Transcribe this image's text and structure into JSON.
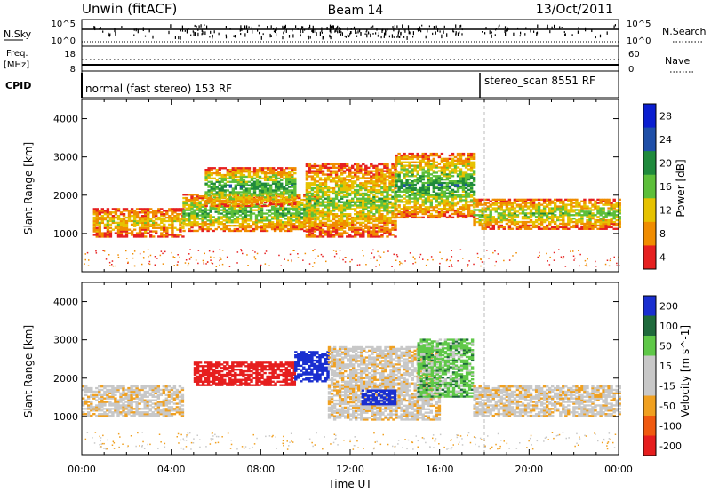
{
  "header": {
    "station": "Unwin (fitACF)",
    "beam": "Beam 14",
    "date": "13/Oct/2011"
  },
  "strip_labels": {
    "nsky": "N.Sky",
    "nsearch": "N.Search",
    "freq": "Freq.",
    "freq_unit": "[MHz]",
    "nave": "Nave",
    "cpid": "CPID",
    "nsky_ticks": [
      "10^5",
      "10^0"
    ],
    "nsearch_ticks": [
      "10^5",
      "10^0"
    ],
    "freq_ticks": [
      "18",
      "8"
    ],
    "nave_ticks": [
      "60",
      "0"
    ]
  },
  "cpid_modes": [
    {
      "label": "normal (fast stereo) 153 RF",
      "start_hour": 0
    },
    {
      "label": "stereo_scan 8551 RF",
      "start_hour": 18
    }
  ],
  "chart_data": [
    {
      "type": "heatmap",
      "name": "power",
      "ylabel": "Slant Range [km]",
      "xlabel": "Time UT",
      "xlim": [
        0,
        24
      ],
      "ylim": [
        0,
        4500
      ],
      "x_ticks": [
        "00:00",
        "04:00",
        "08:00",
        "12:00",
        "16:00",
        "20:00",
        "00:00"
      ],
      "y_ticks": [
        "1000",
        "2000",
        "3000",
        "4000"
      ],
      "colorbar": {
        "label": "Power [dB]",
        "ticks": [
          "28",
          "24",
          "20",
          "16",
          "12",
          "8",
          "4"
        ],
        "range": [
          0,
          32
        ],
        "colors": [
          "#0a1ed0",
          "#1f4fa8",
          "#1f8a3c",
          "#5dbf3a",
          "#e6c200",
          "#f08c00",
          "#e62020"
        ]
      },
      "echo_bands": [
        {
          "t": [
            0.5,
            4.5
          ],
          "range": [
            900,
            1650
          ],
          "level": 10
        },
        {
          "t": [
            4.5,
            10.5
          ],
          "range": [
            1050,
            2000
          ],
          "level": 16
        },
        {
          "t": [
            5.5,
            9.5
          ],
          "range": [
            1700,
            2700
          ],
          "level": 18
        },
        {
          "t": [
            10,
            14
          ],
          "range": [
            900,
            2800
          ],
          "level": 14
        },
        {
          "t": [
            14,
            17.5
          ],
          "range": [
            1400,
            3100
          ],
          "level": 18
        },
        {
          "t": [
            17.5,
            24
          ],
          "range": [
            1100,
            1900
          ],
          "level": 14
        }
      ]
    },
    {
      "type": "heatmap",
      "name": "velocity",
      "ylabel": "Slant Range [km]",
      "xlabel": "Time UT",
      "xlim": [
        0,
        24
      ],
      "ylim": [
        0,
        4500
      ],
      "x_ticks": [
        "00:00",
        "04:00",
        "08:00",
        "12:00",
        "16:00",
        "20:00",
        "00:00"
      ],
      "y_ticks": [
        "1000",
        "2000",
        "3000",
        "4000"
      ],
      "colorbar": {
        "label": "Velocity [m s^-1]",
        "ticks": [
          "200",
          "100",
          "50",
          "15",
          "-15",
          "-50",
          "-100",
          "-200"
        ],
        "colors": [
          "#1a2fd0",
          "#1f6a3c",
          "#5fc848",
          "#c8c8c8",
          "#c8c8c8",
          "#f0a020",
          "#f05a10",
          "#e61e1e"
        ]
      },
      "echo_bands": [
        {
          "t": [
            0,
            4.5
          ],
          "range": [
            1000,
            1800
          ],
          "velocity": 0
        },
        {
          "t": [
            5,
            9.5
          ],
          "range": [
            1800,
            2400
          ],
          "velocity": -200
        },
        {
          "t": [
            9.5,
            11
          ],
          "range": [
            1900,
            2700
          ],
          "velocity": 200
        },
        {
          "t": [
            11,
            16
          ],
          "range": [
            900,
            2800
          ],
          "velocity": 0
        },
        {
          "t": [
            12.5,
            14
          ],
          "range": [
            1300,
            1700
          ],
          "velocity": 200
        },
        {
          "t": [
            15,
            17.5
          ],
          "range": [
            1500,
            3000
          ],
          "velocity": 50
        },
        {
          "t": [
            17.5,
            24
          ],
          "range": [
            1000,
            1800
          ],
          "velocity": 0
        }
      ]
    }
  ]
}
